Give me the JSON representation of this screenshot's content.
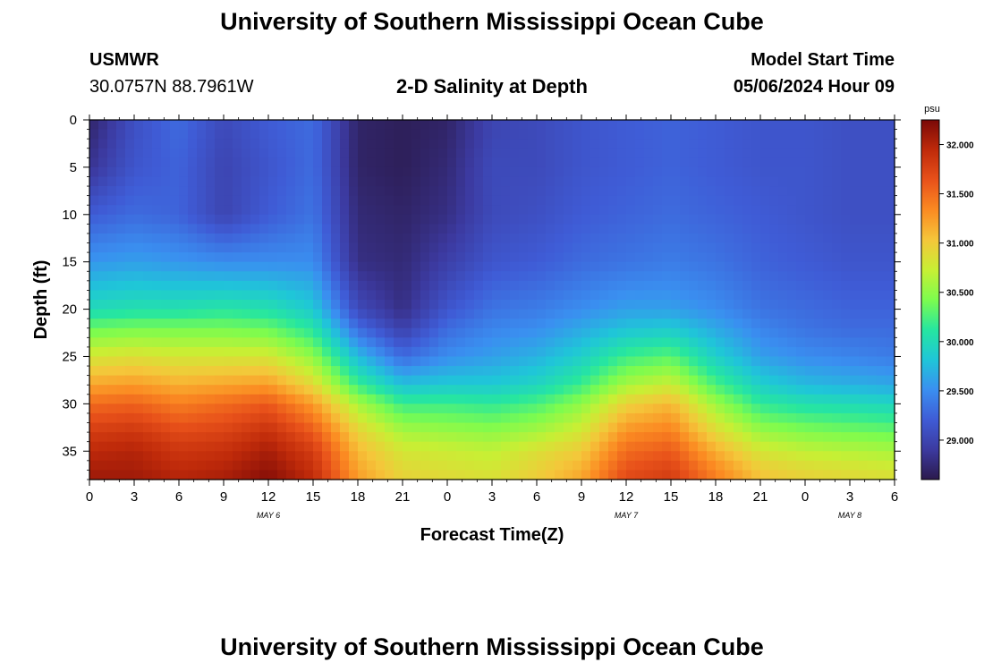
{
  "header": {
    "title": "University of Southern Mississippi Ocean Cube",
    "station": "USMWR",
    "coords": "30.0757N  88.7961W",
    "subtitle": "2-D Salinity at Depth",
    "start_label": "Model Start Time",
    "start_value": "05/06/2024 Hour 09"
  },
  "footer": {
    "title": "University of Southern Mississippi Ocean Cube"
  },
  "chart_data": {
    "type": "heatmap",
    "title": "2-D Salinity at Depth",
    "xlabel": "Forecast Time(Z)",
    "ylabel": "Depth (ft)",
    "x_hours_since_may6_00z": [
      0,
      54
    ],
    "x_ticks": [
      "0",
      "3",
      "6",
      "9",
      "12",
      "15",
      "18",
      "21",
      "0",
      "3",
      "6",
      "9",
      "12",
      "15",
      "18",
      "21",
      "0",
      "3",
      "6"
    ],
    "date_labels": [
      {
        "label": "MAY 6",
        "hour": 12
      },
      {
        "label": "MAY 7",
        "hour": 36
      },
      {
        "label": "MAY 8",
        "hour": 51
      }
    ],
    "y_range_ft": [
      0,
      38
    ],
    "y_ticks": [
      "0",
      "5",
      "10",
      "15",
      "20",
      "25",
      "30",
      "35"
    ],
    "colorbar": {
      "unit": "psu",
      "range": [
        28.6,
        32.25
      ],
      "ticks": [
        "29.000",
        "29.500",
        "30.000",
        "30.500",
        "31.000",
        "31.500",
        "32.000"
      ],
      "colors": [
        "#2b1a4c",
        "#3c3aa0",
        "#3f5cd6",
        "#3a8ff0",
        "#1fc6d8",
        "#26e6a0",
        "#7dfc4e",
        "#c8ef34",
        "#f5c63a",
        "#fb8a22",
        "#e8511a",
        "#bf2a0a",
        "#7a0807"
      ]
    },
    "values_psu": {
      "depths_ft": [
        0,
        5,
        10,
        15,
        20,
        22,
        25,
        28,
        30,
        33,
        35,
        37,
        38
      ],
      "times_hours": [
        0,
        3,
        6,
        9,
        12,
        15,
        18,
        21,
        24,
        27,
        30,
        33,
        36,
        39,
        42,
        45,
        48,
        51,
        54
      ],
      "profiles": [
        [
          28.7,
          28.85,
          29.2,
          29.55,
          30.0,
          30.35,
          30.8,
          31.2,
          31.5,
          31.8,
          31.95,
          32.05,
          32.1
        ],
        [
          29.1,
          29.15,
          29.3,
          29.6,
          30.05,
          30.4,
          30.85,
          31.25,
          31.55,
          31.85,
          32.0,
          32.05,
          32.1
        ],
        [
          29.3,
          29.25,
          29.25,
          29.55,
          30.05,
          30.4,
          30.8,
          31.15,
          31.4,
          31.7,
          31.85,
          31.95,
          32.0
        ],
        [
          29.05,
          29.0,
          29.0,
          29.5,
          30.1,
          30.4,
          30.8,
          31.2,
          31.5,
          31.75,
          31.9,
          32.0,
          32.05
        ],
        [
          29.2,
          29.15,
          29.2,
          29.5,
          30.05,
          30.35,
          30.8,
          31.25,
          31.6,
          31.9,
          32.05,
          32.15,
          32.2
        ],
        [
          29.3,
          29.3,
          29.35,
          29.5,
          29.85,
          30.1,
          30.5,
          30.9,
          31.25,
          31.6,
          31.8,
          31.9,
          31.95
        ],
        [
          28.7,
          28.7,
          28.75,
          28.8,
          29.05,
          29.3,
          29.75,
          30.2,
          30.6,
          30.95,
          31.1,
          31.2,
          31.25
        ],
        [
          28.65,
          28.65,
          28.7,
          28.75,
          28.8,
          28.95,
          29.3,
          29.8,
          30.2,
          30.6,
          30.8,
          30.9,
          30.95
        ],
        [
          28.7,
          28.75,
          28.8,
          28.95,
          29.15,
          29.3,
          29.5,
          29.85,
          30.2,
          30.55,
          30.75,
          30.85,
          30.9
        ],
        [
          29.0,
          29.05,
          29.05,
          29.15,
          29.35,
          29.45,
          29.6,
          29.85,
          30.15,
          30.5,
          30.7,
          30.8,
          30.85
        ],
        [
          29.05,
          29.05,
          29.1,
          29.2,
          29.4,
          29.5,
          29.7,
          29.95,
          30.25,
          30.6,
          30.85,
          30.95,
          31.0
        ],
        [
          29.15,
          29.15,
          29.2,
          29.3,
          29.5,
          29.65,
          29.9,
          30.2,
          30.5,
          30.8,
          31.0,
          31.15,
          31.2
        ],
        [
          29.2,
          29.2,
          29.25,
          29.35,
          29.6,
          29.8,
          30.2,
          30.6,
          30.95,
          31.3,
          31.5,
          31.65,
          31.7
        ],
        [
          29.25,
          29.25,
          29.3,
          29.4,
          29.6,
          29.85,
          30.3,
          30.75,
          31.1,
          31.4,
          31.6,
          31.75,
          31.8
        ],
        [
          29.2,
          29.2,
          29.25,
          29.35,
          29.5,
          29.65,
          29.9,
          30.25,
          30.55,
          30.9,
          31.15,
          31.35,
          31.4
        ],
        [
          29.15,
          29.15,
          29.2,
          29.25,
          29.35,
          29.45,
          29.6,
          29.9,
          30.15,
          30.55,
          30.8,
          31.0,
          31.05
        ],
        [
          29.15,
          29.15,
          29.15,
          29.2,
          29.3,
          29.35,
          29.5,
          29.75,
          30.05,
          30.45,
          30.7,
          30.9,
          30.95
        ],
        [
          29.1,
          29.1,
          29.1,
          29.15,
          29.25,
          29.3,
          29.45,
          29.7,
          30.0,
          30.4,
          30.65,
          30.85,
          30.9
        ],
        [
          29.1,
          29.1,
          29.1,
          29.15,
          29.25,
          29.3,
          29.4,
          29.65,
          29.95,
          30.35,
          30.6,
          30.8,
          30.85
        ]
      ]
    }
  }
}
